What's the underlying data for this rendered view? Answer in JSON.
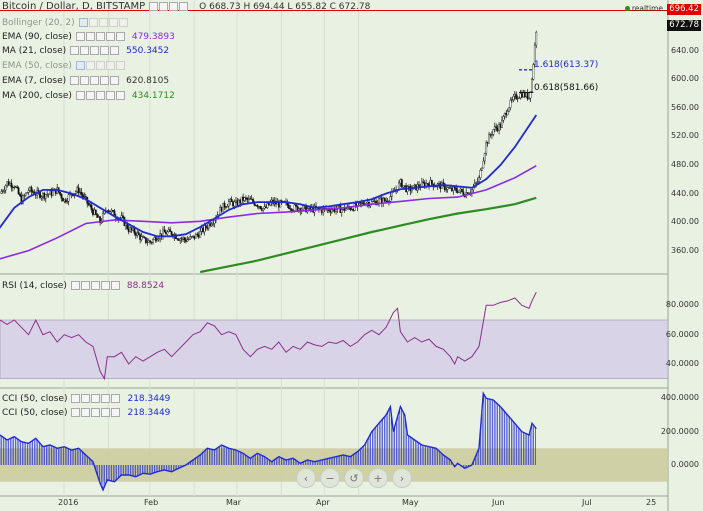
{
  "header": {
    "title": "Bitcoin / Dollar, D, BITSTAMP",
    "ohlc": "O 668.73 H 694.44 L 655.82 C 672.78"
  },
  "price_axis": {
    "ticks": [
      "640.00",
      "600.00",
      "560.00",
      "520.00",
      "480.00",
      "440.00",
      "400.00",
      "360.00"
    ],
    "last_price": "672.78",
    "line_price": "696.42",
    "line_label": "realtime"
  },
  "indicators": {
    "bb": {
      "name": "Bollinger (20, 2)"
    },
    "ema90": {
      "name": "EMA (90, close)",
      "value": "479.3893"
    },
    "ma21": {
      "name": "MA (21, close)",
      "value": "550.3452"
    },
    "ema50": {
      "name": "EMA (50, close)"
    },
    "ema7": {
      "name": "EMA (7, close)",
      "value": "620.8105"
    },
    "ma200": {
      "name": "MA (200, close)",
      "value": "434.1712"
    }
  },
  "fib": {
    "a": "1.618(613.37)",
    "b": "0.618(581.66)"
  },
  "rsi": {
    "name": "RSI (14, close)",
    "value": "88.8524",
    "ticks": [
      "80.0000",
      "60.0000",
      "40.0000"
    ]
  },
  "cci": {
    "name1": "CCI (50, close)",
    "value1": "218.3449",
    "name2": "CCI (50, close)",
    "value2": "218.3449",
    "ticks": [
      "400.0000",
      "200.0000",
      "0.0000"
    ]
  },
  "time_axis": [
    "2016",
    "Feb",
    "Mar",
    "Apr",
    "May",
    "Jun",
    "Jul",
    "25"
  ],
  "nav": {
    "left": "‹",
    "minus": "−",
    "reset": "↺",
    "plus": "+",
    "right": "›"
  },
  "colors": {
    "ema90": "#8a2be2",
    "ma21": "#1f2bd1",
    "ma200": "#2e8b22",
    "rsi": "#8b2f8b",
    "cci": "#1f2bd1",
    "hline": "#e00000"
  },
  "chart_data": {
    "type": "candlestick",
    "y_range": [
      330,
      700
    ],
    "close_anchors": [
      [
        0,
        440
      ],
      [
        5,
        455
      ],
      [
        10,
        452
      ],
      [
        15,
        430
      ],
      [
        20,
        445
      ],
      [
        25,
        440
      ],
      [
        30,
        438
      ],
      [
        35,
        440
      ],
      [
        40,
        445
      ],
      [
        45,
        430
      ],
      [
        50,
        440
      ],
      [
        55,
        445
      ],
      [
        60,
        430
      ],
      [
        65,
        415
      ],
      [
        70,
        400
      ],
      [
        75,
        420
      ],
      [
        80,
        410
      ],
      [
        85,
        405
      ],
      [
        90,
        390
      ],
      [
        95,
        385
      ],
      [
        100,
        375
      ],
      [
        105,
        372
      ],
      [
        110,
        380
      ],
      [
        115,
        385
      ],
      [
        120,
        385
      ],
      [
        125,
        378
      ],
      [
        130,
        375
      ],
      [
        135,
        378
      ],
      [
        140,
        385
      ],
      [
        145,
        395
      ],
      [
        150,
        405
      ],
      [
        155,
        420
      ],
      [
        160,
        428
      ],
      [
        165,
        425
      ],
      [
        170,
        432
      ],
      [
        175,
        430
      ],
      [
        180,
        425
      ],
      [
        185,
        418
      ],
      [
        190,
        428
      ],
      [
        195,
        425
      ],
      [
        200,
        425
      ],
      [
        205,
        420
      ],
      [
        210,
        420
      ],
      [
        215,
        418
      ],
      [
        220,
        418
      ],
      [
        225,
        417
      ],
      [
        230,
        418
      ],
      [
        235,
        418
      ],
      [
        240,
        418
      ],
      [
        245,
        420
      ],
      [
        250,
        422
      ],
      [
        255,
        428
      ],
      [
        260,
        427
      ],
      [
        265,
        430
      ],
      [
        270,
        430
      ],
      [
        275,
        440
      ],
      [
        280,
        455
      ],
      [
        285,
        445
      ],
      [
        290,
        448
      ],
      [
        295,
        452
      ],
      [
        300,
        455
      ],
      [
        305,
        452
      ],
      [
        310,
        450
      ],
      [
        315,
        445
      ],
      [
        320,
        445
      ],
      [
        325,
        440
      ],
      [
        330,
        445
      ],
      [
        335,
        460
      ],
      [
        340,
        510
      ],
      [
        345,
        530
      ],
      [
        350,
        535
      ],
      [
        355,
        560
      ],
      [
        360,
        575
      ],
      [
        365,
        580
      ],
      [
        370,
        575
      ],
      [
        372,
        600
      ],
      [
        375,
        670
      ]
    ],
    "ema90": [
      [
        -1,
        348
      ],
      [
        20,
        360
      ],
      [
        40,
        378
      ],
      [
        60,
        398
      ],
      [
        80,
        403
      ],
      [
        100,
        401
      ],
      [
        120,
        399
      ],
      [
        140,
        401
      ],
      [
        160,
        407
      ],
      [
        180,
        412
      ],
      [
        200,
        414
      ],
      [
        220,
        417
      ],
      [
        240,
        420
      ],
      [
        260,
        425
      ],
      [
        280,
        429
      ],
      [
        300,
        433
      ],
      [
        320,
        435
      ],
      [
        340,
        445
      ],
      [
        360,
        462
      ],
      [
        375,
        479
      ]
    ],
    "ma21": [
      [
        -1,
        390
      ],
      [
        10,
        420
      ],
      [
        20,
        435
      ],
      [
        30,
        445
      ],
      [
        40,
        445
      ],
      [
        50,
        440
      ],
      [
        60,
        432
      ],
      [
        70,
        420
      ],
      [
        80,
        408
      ],
      [
        90,
        397
      ],
      [
        100,
        386
      ],
      [
        110,
        380
      ],
      [
        120,
        380
      ],
      [
        130,
        383
      ],
      [
        140,
        393
      ],
      [
        150,
        405
      ],
      [
        160,
        417
      ],
      [
        170,
        425
      ],
      [
        180,
        428
      ],
      [
        190,
        428
      ],
      [
        200,
        428
      ],
      [
        210,
        425
      ],
      [
        220,
        420
      ],
      [
        230,
        422
      ],
      [
        240,
        425
      ],
      [
        250,
        428
      ],
      [
        260,
        432
      ],
      [
        270,
        440
      ],
      [
        280,
        446
      ],
      [
        290,
        448
      ],
      [
        300,
        450
      ],
      [
        310,
        452
      ],
      [
        320,
        450
      ],
      [
        330,
        448
      ],
      [
        340,
        460
      ],
      [
        350,
        480
      ],
      [
        360,
        505
      ],
      [
        375,
        550
      ]
    ],
    "ma200": [
      [
        140,
        330
      ],
      [
        160,
        338
      ],
      [
        180,
        346
      ],
      [
        200,
        356
      ],
      [
        220,
        366
      ],
      [
        240,
        376
      ],
      [
        260,
        386
      ],
      [
        280,
        395
      ],
      [
        300,
        404
      ],
      [
        320,
        412
      ],
      [
        340,
        418
      ],
      [
        360,
        425
      ],
      [
        375,
        434
      ]
    ],
    "rsi_range": [
      25,
      100
    ],
    "rsi": [
      [
        0,
        70
      ],
      [
        5,
        67
      ],
      [
        10,
        70
      ],
      [
        15,
        65
      ],
      [
        20,
        60
      ],
      [
        25,
        70
      ],
      [
        30,
        60
      ],
      [
        35,
        62
      ],
      [
        40,
        55
      ],
      [
        45,
        60
      ],
      [
        50,
        58
      ],
      [
        55,
        60
      ],
      [
        60,
        55
      ],
      [
        65,
        52
      ],
      [
        70,
        35
      ],
      [
        73,
        30
      ],
      [
        75,
        45
      ],
      [
        80,
        45
      ],
      [
        85,
        48
      ],
      [
        90,
        40
      ],
      [
        95,
        45
      ],
      [
        100,
        42
      ],
      [
        105,
        45
      ],
      [
        110,
        48
      ],
      [
        115,
        50
      ],
      [
        120,
        45
      ],
      [
        125,
        50
      ],
      [
        130,
        55
      ],
      [
        135,
        60
      ],
      [
        140,
        62
      ],
      [
        145,
        68
      ],
      [
        150,
        66
      ],
      [
        155,
        60
      ],
      [
        160,
        62
      ],
      [
        165,
        60
      ],
      [
        170,
        50
      ],
      [
        175,
        45
      ],
      [
        180,
        50
      ],
      [
        185,
        52
      ],
      [
        190,
        50
      ],
      [
        195,
        55
      ],
      [
        200,
        48
      ],
      [
        205,
        52
      ],
      [
        210,
        50
      ],
      [
        215,
        55
      ],
      [
        220,
        53
      ],
      [
        225,
        52
      ],
      [
        230,
        55
      ],
      [
        235,
        54
      ],
      [
        240,
        56
      ],
      [
        245,
        52
      ],
      [
        250,
        55
      ],
      [
        255,
        60
      ],
      [
        260,
        63
      ],
      [
        265,
        60
      ],
      [
        270,
        65
      ],
      [
        275,
        75
      ],
      [
        278,
        78
      ],
      [
        280,
        62
      ],
      [
        285,
        55
      ],
      [
        290,
        58
      ],
      [
        295,
        55
      ],
      [
        300,
        57
      ],
      [
        305,
        52
      ],
      [
        310,
        50
      ],
      [
        315,
        45
      ],
      [
        318,
        40
      ],
      [
        320,
        45
      ],
      [
        325,
        42
      ],
      [
        330,
        45
      ],
      [
        335,
        52
      ],
      [
        340,
        80
      ],
      [
        345,
        80
      ],
      [
        350,
        82
      ],
      [
        355,
        83
      ],
      [
        360,
        85
      ],
      [
        365,
        80
      ],
      [
        370,
        78
      ],
      [
        372,
        83
      ],
      [
        375,
        89
      ]
    ],
    "cci_range": [
      -180,
      450
    ],
    "cci": [
      [
        0,
        180
      ],
      [
        5,
        150
      ],
      [
        10,
        170
      ],
      [
        15,
        140
      ],
      [
        20,
        130
      ],
      [
        25,
        160
      ],
      [
        30,
        110
      ],
      [
        35,
        120
      ],
      [
        40,
        100
      ],
      [
        45,
        110
      ],
      [
        50,
        90
      ],
      [
        55,
        100
      ],
      [
        60,
        60
      ],
      [
        65,
        20
      ],
      [
        70,
        -110
      ],
      [
        72,
        -150
      ],
      [
        75,
        -90
      ],
      [
        80,
        -100
      ],
      [
        85,
        -60
      ],
      [
        90,
        -60
      ],
      [
        95,
        -70
      ],
      [
        100,
        -50
      ],
      [
        105,
        -55
      ],
      [
        110,
        -40
      ],
      [
        115,
        -30
      ],
      [
        120,
        -40
      ],
      [
        125,
        -20
      ],
      [
        130,
        0
      ],
      [
        135,
        30
      ],
      [
        140,
        60
      ],
      [
        145,
        100
      ],
      [
        150,
        90
      ],
      [
        155,
        120
      ],
      [
        160,
        100
      ],
      [
        165,
        90
      ],
      [
        170,
        70
      ],
      [
        175,
        40
      ],
      [
        180,
        70
      ],
      [
        185,
        50
      ],
      [
        190,
        20
      ],
      [
        195,
        50
      ],
      [
        200,
        30
      ],
      [
        205,
        40
      ],
      [
        210,
        10
      ],
      [
        215,
        30
      ],
      [
        220,
        20
      ],
      [
        225,
        30
      ],
      [
        230,
        40
      ],
      [
        235,
        50
      ],
      [
        240,
        60
      ],
      [
        245,
        50
      ],
      [
        250,
        80
      ],
      [
        255,
        120
      ],
      [
        260,
        200
      ],
      [
        265,
        250
      ],
      [
        270,
        300
      ],
      [
        273,
        350
      ],
      [
        275,
        200
      ],
      [
        280,
        350
      ],
      [
        283,
        300
      ],
      [
        285,
        180
      ],
      [
        290,
        150
      ],
      [
        295,
        120
      ],
      [
        300,
        110
      ],
      [
        305,
        100
      ],
      [
        310,
        60
      ],
      [
        315,
        30
      ],
      [
        318,
        -10
      ],
      [
        320,
        10
      ],
      [
        325,
        -20
      ],
      [
        330,
        0
      ],
      [
        335,
        100
      ],
      [
        338,
        430
      ],
      [
        340,
        400
      ],
      [
        345,
        390
      ],
      [
        350,
        350
      ],
      [
        355,
        300
      ],
      [
        360,
        250
      ],
      [
        365,
        200
      ],
      [
        370,
        180
      ],
      [
        372,
        250
      ],
      [
        375,
        218
      ]
    ]
  }
}
